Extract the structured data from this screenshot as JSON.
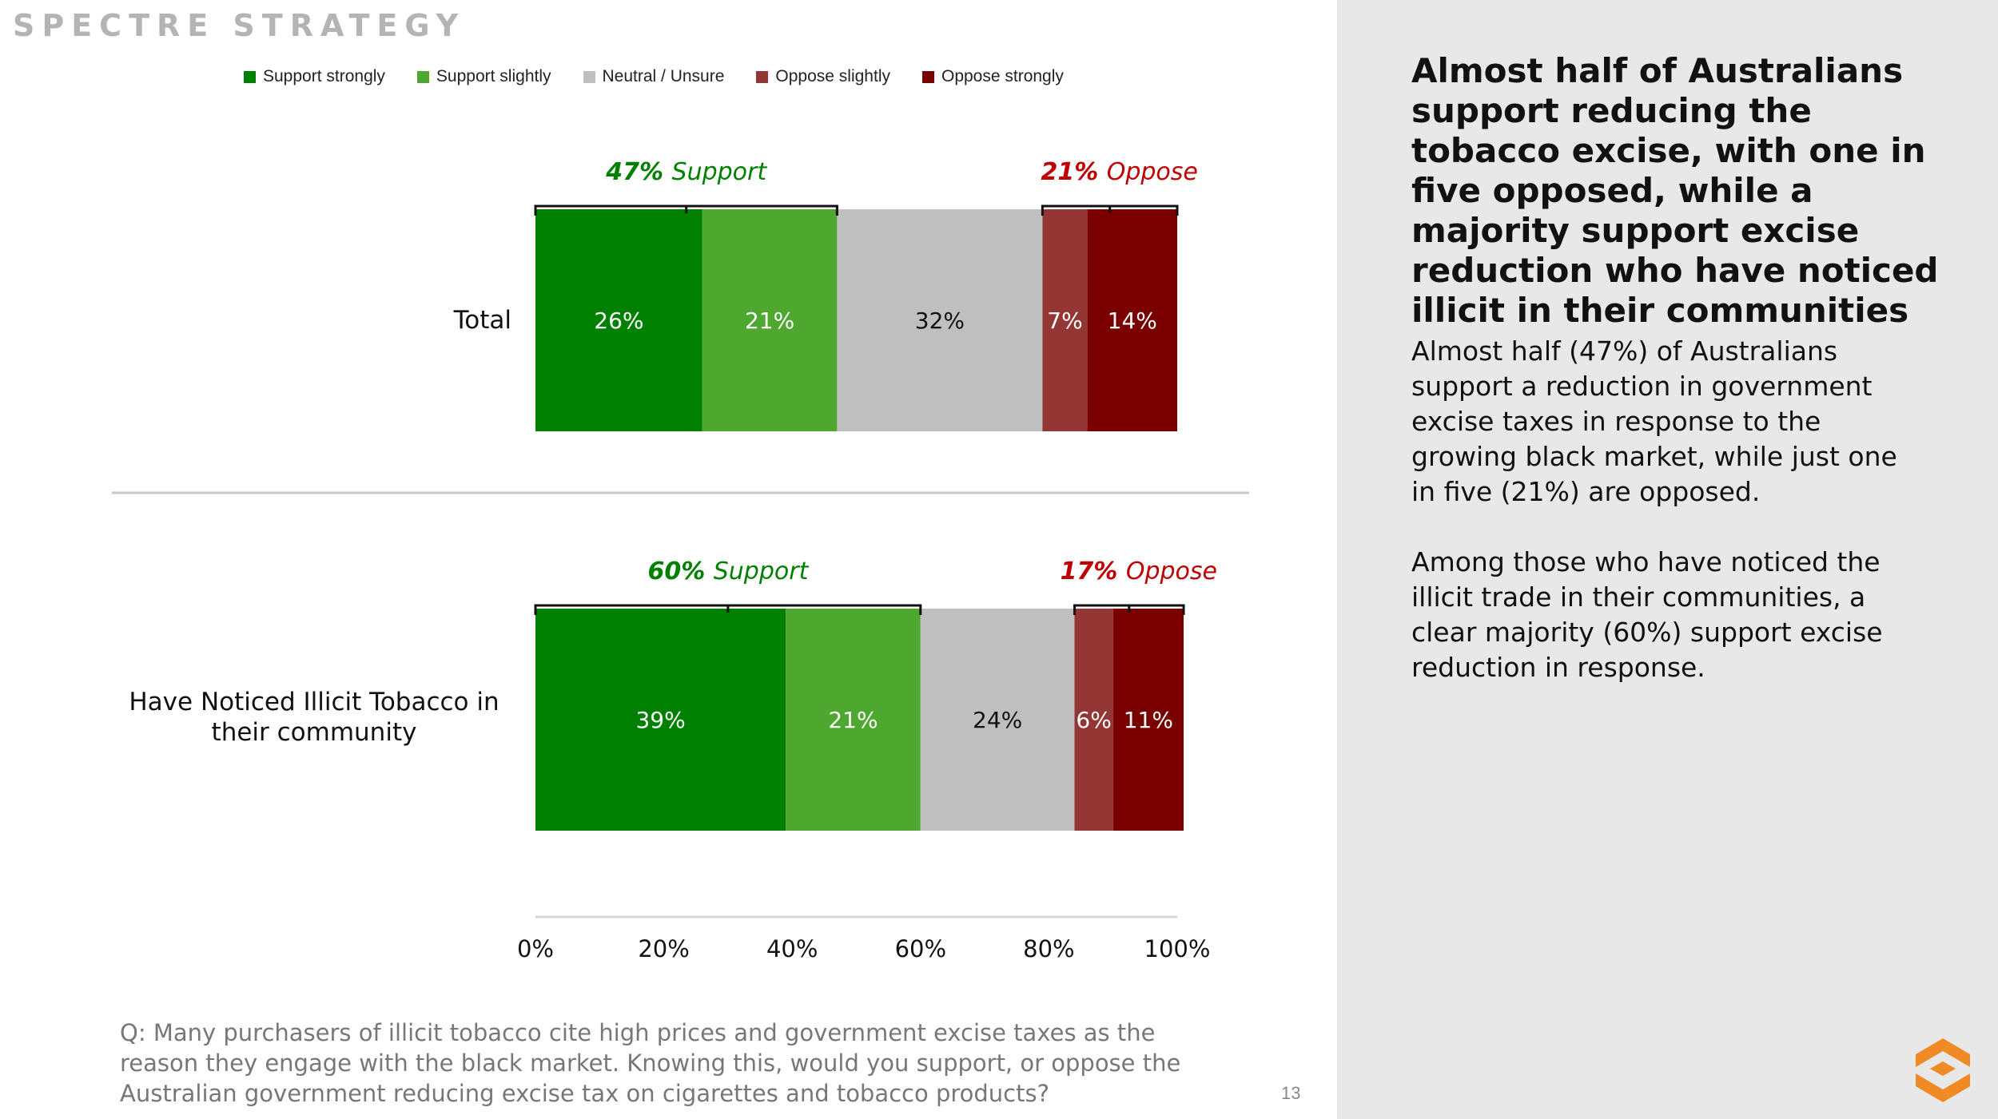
{
  "brand": "SPECTRE STRATEGY",
  "legend": [
    {
      "label": "Support strongly",
      "color": "#008000"
    },
    {
      "label": "Support slightly",
      "color": "#4ea72e"
    },
    {
      "label": "Neutral / Unsure",
      "color": "#bfbfbf"
    },
    {
      "label": "Oppose slightly",
      "color": "#943634"
    },
    {
      "label": "Oppose strongly",
      "color": "#7a0000"
    }
  ],
  "chart_data": {
    "type": "bar",
    "orientation": "horizontal-stacked-100",
    "categories": [
      "Total",
      "Have Noticed Illicit Tobacco in their community"
    ],
    "series": [
      {
        "name": "Support strongly",
        "values": [
          26,
          39
        ]
      },
      {
        "name": "Support slightly",
        "values": [
          21,
          21
        ]
      },
      {
        "name": "Neutral / Unsure",
        "values": [
          32,
          24
        ]
      },
      {
        "name": "Oppose slightly",
        "values": [
          7,
          6
        ]
      },
      {
        "name": "Oppose strongly",
        "values": [
          14,
          11
        ]
      }
    ],
    "data_labels": [
      [
        "26%",
        "21%",
        "32%",
        "7%",
        "14%"
      ],
      [
        "39%",
        "21%",
        "24%",
        "6%",
        "11%"
      ]
    ],
    "annotations": [
      {
        "support_pct": "47%",
        "support_word": "Support",
        "oppose_pct": "21%",
        "oppose_word": "Oppose"
      },
      {
        "support_pct": "60%",
        "support_word": "Support",
        "oppose_pct": "17%",
        "oppose_word": "Oppose"
      }
    ],
    "x_ticks": [
      "0%",
      "20%",
      "40%",
      "60%",
      "80%",
      "100%"
    ],
    "xlim": [
      0,
      100
    ],
    "title": "",
    "xlabel": "",
    "ylabel": ""
  },
  "colors": {
    "support_text": "#008000",
    "oppose_text": "#c00000",
    "panel_bg": "#e8e8e8",
    "logo": "#f08a24"
  },
  "headline": "Almost half of Australians support reducing the tobacco excise, with one in five opposed, while a majority support excise reduction who have noticed illicit in their communities",
  "body_paragraph_1": "Almost half (47%) of Australians support a reduction in government excise taxes in response to the growing black market, while just one in five (21%) are opposed.",
  "body_paragraph_2": "Among those who have noticed the illicit trade in their communities, a clear majority (60%) support excise reduction in response.",
  "question": "Q: Many purchasers of illicit tobacco cite high prices and government excise taxes as the reason they engage with the black market. Knowing this, would you support, or oppose the Australian government reducing excise tax on cigarettes and tobacco products?",
  "page_number": "13",
  "logo_icon": "spectre-logo-icon"
}
